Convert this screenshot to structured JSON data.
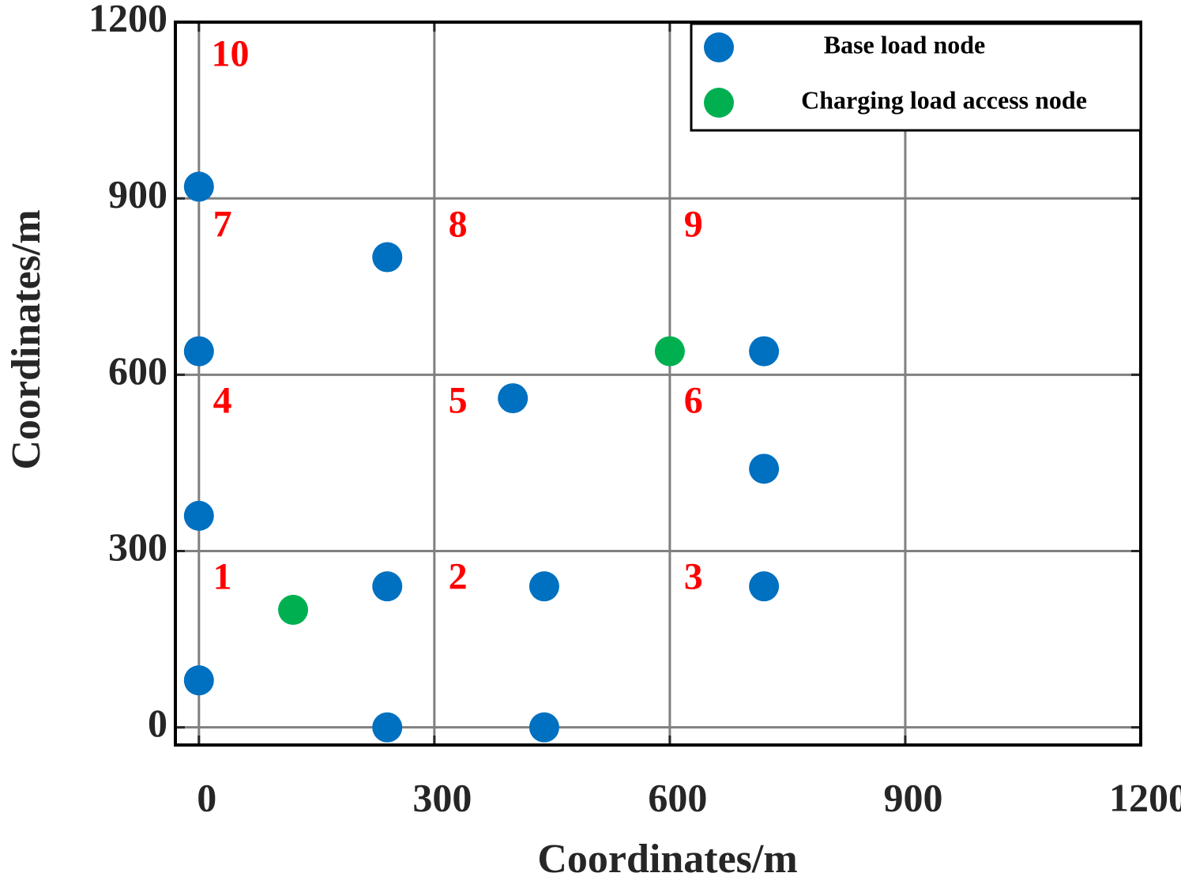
{
  "chart_data": {
    "type": "scatter",
    "xlabel": "Coordinates/m",
    "ylabel": "Coordinates/m",
    "xlim": [
      -30,
      1200
    ],
    "ylim": [
      -30,
      1200
    ],
    "xticks": [
      0,
      300,
      600,
      900,
      1200
    ],
    "yticks": [
      0,
      300,
      600,
      900,
      1200
    ],
    "grid": true,
    "legend": "upper right",
    "series": [
      {
        "name": "Base load node",
        "color": "#0070c0",
        "x": [
          0,
          240,
          0,
          400,
          720,
          720,
          0,
          240,
          440,
          720,
          0,
          240,
          440
        ],
        "values": [
          920,
          800,
          640,
          560,
          640,
          440,
          360,
          240,
          240,
          240,
          80,
          0,
          0
        ]
      },
      {
        "name": "Charging load access node",
        "color": "#00b050",
        "x": [
          120,
          600
        ],
        "values": [
          200,
          640
        ]
      }
    ],
    "annotations": [
      {
        "text": "10",
        "x": 40,
        "y": 1140
      },
      {
        "text": "7",
        "x": 30,
        "y": 850
      },
      {
        "text": "8",
        "x": 330,
        "y": 850
      },
      {
        "text": "9",
        "x": 630,
        "y": 850
      },
      {
        "text": "4",
        "x": 30,
        "y": 550
      },
      {
        "text": "5",
        "x": 330,
        "y": 550
      },
      {
        "text": "6",
        "x": 630,
        "y": 550
      },
      {
        "text": "1",
        "x": 30,
        "y": 250
      },
      {
        "text": "2",
        "x": 330,
        "y": 250
      },
      {
        "text": "3",
        "x": 630,
        "y": 250
      }
    ],
    "annotation_color": "#ff0000"
  }
}
